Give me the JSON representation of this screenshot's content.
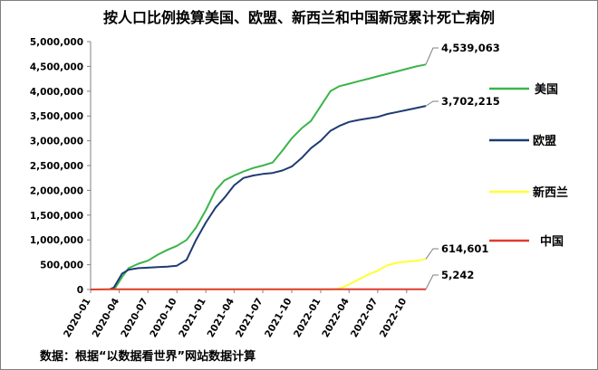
{
  "chart_data": {
    "type": "line",
    "title": "按人口比例换算美国、欧盟、新西兰和中国新冠累计死亡病例",
    "source": "数据：根据“以数据看世界”网站数据计算",
    "xlabel": "",
    "ylabel": "",
    "x_range": [
      "2020-01",
      "2022-12"
    ],
    "x_ticks": [
      "2020-01",
      "2020-04",
      "2020-07",
      "2020-10",
      "2021-01",
      "2021-04",
      "2021-07",
      "2021-10",
      "2022-01",
      "2022-04",
      "2022-07",
      "2022-10"
    ],
    "ylim": [
      0,
      5000000
    ],
    "y_ticks": [
      "0",
      "500,000",
      "1,000,000",
      "1,500,000",
      "2,000,000",
      "2,500,000",
      "3,000,000",
      "3,500,000",
      "4,000,000",
      "4,500,000",
      "5,000,000"
    ],
    "legend_position": "right",
    "grid": false,
    "series": [
      {
        "name": "美国",
        "color": "#3cb44b",
        "end_label": "4,539,063",
        "points": [
          [
            "2020-01-01",
            0
          ],
          [
            "2020-03-01",
            0
          ],
          [
            "2020-03-20",
            40000
          ],
          [
            "2020-04-10",
            250000
          ],
          [
            "2020-05-01",
            430000
          ],
          [
            "2020-06-01",
            520000
          ],
          [
            "2020-07-01",
            580000
          ],
          [
            "2020-08-01",
            700000
          ],
          [
            "2020-09-01",
            800000
          ],
          [
            "2020-10-01",
            880000
          ],
          [
            "2020-11-01",
            1000000
          ],
          [
            "2020-12-01",
            1250000
          ],
          [
            "2021-01-01",
            1600000
          ],
          [
            "2021-02-01",
            2000000
          ],
          [
            "2021-03-01",
            2200000
          ],
          [
            "2021-04-01",
            2300000
          ],
          [
            "2021-05-01",
            2380000
          ],
          [
            "2021-06-01",
            2450000
          ],
          [
            "2021-07-01",
            2500000
          ],
          [
            "2021-08-01",
            2560000
          ],
          [
            "2021-09-01",
            2800000
          ],
          [
            "2021-10-01",
            3050000
          ],
          [
            "2021-11-01",
            3250000
          ],
          [
            "2021-12-01",
            3400000
          ],
          [
            "2022-01-01",
            3700000
          ],
          [
            "2022-02-01",
            4000000
          ],
          [
            "2022-03-01",
            4100000
          ],
          [
            "2022-04-01",
            4150000
          ],
          [
            "2022-05-01",
            4200000
          ],
          [
            "2022-06-01",
            4250000
          ],
          [
            "2022-07-01",
            4300000
          ],
          [
            "2022-08-01",
            4350000
          ],
          [
            "2022-09-01",
            4400000
          ],
          [
            "2022-10-01",
            4450000
          ],
          [
            "2022-11-01",
            4500000
          ],
          [
            "2022-12-01",
            4539063
          ]
        ]
      },
      {
        "name": "欧盟",
        "color": "#1f3b73",
        "end_label": "3,702,215",
        "points": [
          [
            "2020-01-01",
            0
          ],
          [
            "2020-03-01",
            0
          ],
          [
            "2020-03-15",
            40000
          ],
          [
            "2020-04-10",
            320000
          ],
          [
            "2020-05-01",
            400000
          ],
          [
            "2020-06-01",
            430000
          ],
          [
            "2020-07-01",
            440000
          ],
          [
            "2020-08-01",
            450000
          ],
          [
            "2020-09-01",
            460000
          ],
          [
            "2020-10-01",
            480000
          ],
          [
            "2020-11-01",
            600000
          ],
          [
            "2020-12-01",
            1000000
          ],
          [
            "2021-01-01",
            1350000
          ],
          [
            "2021-02-01",
            1650000
          ],
          [
            "2021-03-01",
            1850000
          ],
          [
            "2021-04-01",
            2100000
          ],
          [
            "2021-05-01",
            2250000
          ],
          [
            "2021-06-01",
            2300000
          ],
          [
            "2021-07-01",
            2330000
          ],
          [
            "2021-08-01",
            2350000
          ],
          [
            "2021-09-01",
            2400000
          ],
          [
            "2021-10-01",
            2480000
          ],
          [
            "2021-11-01",
            2650000
          ],
          [
            "2021-12-01",
            2850000
          ],
          [
            "2022-01-01",
            3000000
          ],
          [
            "2022-02-01",
            3200000
          ],
          [
            "2022-03-01",
            3300000
          ],
          [
            "2022-04-01",
            3380000
          ],
          [
            "2022-05-01",
            3420000
          ],
          [
            "2022-06-01",
            3450000
          ],
          [
            "2022-07-01",
            3480000
          ],
          [
            "2022-08-01",
            3540000
          ],
          [
            "2022-09-01",
            3580000
          ],
          [
            "2022-10-01",
            3620000
          ],
          [
            "2022-11-01",
            3660000
          ],
          [
            "2022-12-01",
            3702215
          ]
        ]
      },
      {
        "name": "新西兰",
        "color": "#ffff33",
        "end_label": "614,601",
        "points": [
          [
            "2020-01-01",
            0
          ],
          [
            "2022-02-01",
            0
          ],
          [
            "2022-03-01",
            20000
          ],
          [
            "2022-04-01",
            100000
          ],
          [
            "2022-05-01",
            200000
          ],
          [
            "2022-06-01",
            300000
          ],
          [
            "2022-07-01",
            380000
          ],
          [
            "2022-08-01",
            490000
          ],
          [
            "2022-09-01",
            540000
          ],
          [
            "2022-10-01",
            560000
          ],
          [
            "2022-11-01",
            580000
          ],
          [
            "2022-12-01",
            614601
          ]
        ]
      },
      {
        "name": "中国",
        "color": "#e03c31",
        "end_label": "5,242",
        "points": [
          [
            "2020-01-01",
            0
          ],
          [
            "2020-03-01",
            3500
          ],
          [
            "2022-04-01",
            4000
          ],
          [
            "2022-06-01",
            5000
          ],
          [
            "2022-12-01",
            5242
          ]
        ]
      }
    ]
  }
}
